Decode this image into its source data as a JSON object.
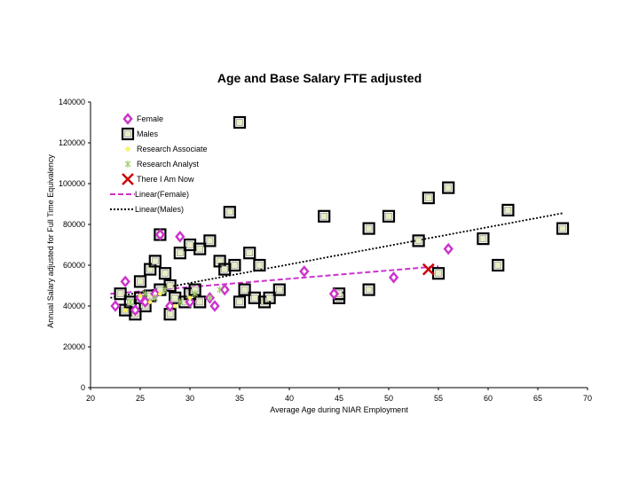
{
  "chart_data": {
    "type": "scatter",
    "title": "Age and Base Salary FTE adjusted",
    "xlabel": "Average Age during NIAR Employment",
    "ylabel": "Annual Salary adjusted for Full Time Equivalency",
    "xlim": [
      20,
      70
    ],
    "ylim": [
      0,
      140000
    ],
    "xticks": [
      "20",
      "25",
      "30",
      "35",
      "40",
      "45",
      "50",
      "55",
      "60",
      "65",
      "70"
    ],
    "yticks": [
      "0",
      "20000",
      "40000",
      "60000",
      "80000",
      "100000",
      "120000",
      "140000"
    ],
    "grid": false,
    "legend_position": "top-left",
    "legend": [
      "Female",
      "Males",
      "Research Associate",
      "Research Analyst",
      "There I Am Now",
      "Linear(Female)",
      "Linear(Males)"
    ],
    "colors": {
      "female": "#cc33cc",
      "males": "#000000",
      "males_fill": "#e8edc4",
      "research_associate": "#ffff66",
      "research_analyst": "#99cc66",
      "there_i_am_now": "#cc0000",
      "trend_female": "#cc33cc",
      "trend_males": "#000000"
    },
    "series": [
      {
        "name": "Female",
        "marker": "diamond",
        "x": [
          22.5,
          23.5,
          24.5,
          25,
          25.5,
          26.5,
          27,
          28,
          29,
          30,
          32,
          32.5,
          33.5,
          41.5,
          44.5,
          50.5,
          56
        ],
        "y": [
          40000,
          52000,
          38000,
          44000,
          42000,
          46000,
          75000,
          40000,
          74000,
          42000,
          44000,
          40000,
          48000,
          57000,
          46000,
          54000,
          68000
        ]
      },
      {
        "name": "Males",
        "marker": "square",
        "x": [
          23,
          23.5,
          24,
          24.5,
          25,
          25,
          25.5,
          26,
          26,
          26.5,
          27,
          27,
          27.5,
          28,
          28,
          28.5,
          29,
          29.5,
          30,
          30,
          30.5,
          31,
          31,
          32,
          33,
          33.5,
          34,
          34.5,
          35,
          35,
          35.5,
          36,
          36.5,
          37,
          37.5,
          38,
          39,
          43.5,
          45,
          45,
          48,
          48,
          50,
          53,
          54,
          55,
          56,
          59.5,
          61,
          62,
          67.5
        ],
        "y": [
          46000,
          38000,
          42000,
          36000,
          44000,
          52000,
          40000,
          58000,
          45000,
          62000,
          75000,
          48000,
          56000,
          36000,
          50000,
          44000,
          66000,
          42000,
          70000,
          46000,
          48000,
          42000,
          68000,
          72000,
          62000,
          58000,
          86000,
          60000,
          130000,
          42000,
          48000,
          66000,
          44000,
          60000,
          42000,
          44000,
          48000,
          84000,
          44000,
          46000,
          78000,
          48000,
          84000,
          72000,
          93000,
          56000,
          98000,
          73000,
          60000,
          87000,
          78000
        ]
      },
      {
        "name": "Research Associate",
        "marker": "dot",
        "x": [
          23.5,
          25,
          26,
          27,
          28.5,
          30
        ],
        "y": [
          38000,
          45000,
          42000,
          46000,
          40000,
          44000
        ]
      },
      {
        "name": "Research Analyst",
        "marker": "asterisk",
        "x": [
          24,
          25.5,
          26.5,
          27.5,
          29,
          30.5,
          32,
          33
        ],
        "y": [
          42000,
          46000,
          44000,
          48000,
          42000,
          46000,
          44000,
          48000
        ]
      },
      {
        "name": "There I Am Now",
        "marker": "x",
        "x": [
          54
        ],
        "y": [
          58000
        ]
      }
    ],
    "trendlines": [
      {
        "name": "Linear(Female)",
        "style": "dashed",
        "x": [
          22,
          55
        ],
        "y": [
          46000,
          59500
        ]
      },
      {
        "name": "Linear(Males)",
        "style": "dotted",
        "x": [
          22,
          67.5
        ],
        "y": [
          44000,
          85500
        ]
      }
    ]
  }
}
